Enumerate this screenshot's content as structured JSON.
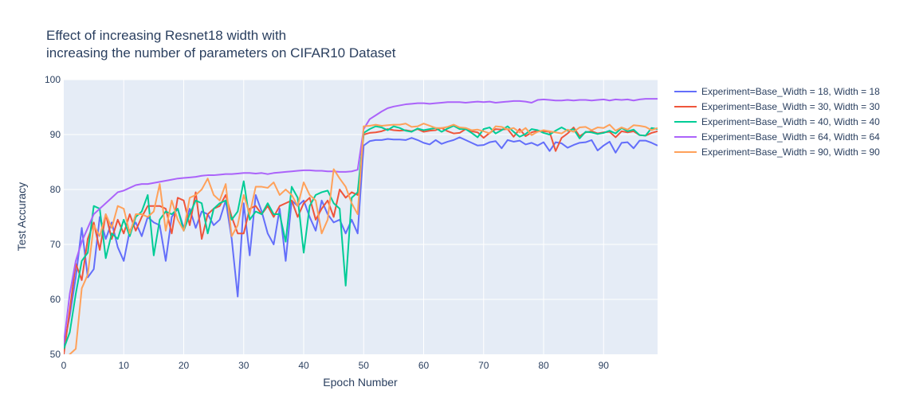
{
  "chart_data": {
    "type": "line",
    "title_lines": [
      "Effect of increasing Resnet18 width with",
      "increasing the number of parameters on CIFAR10 Dataset"
    ],
    "xlabel": "Epoch Number",
    "ylabel": "Test Accuracy",
    "xlim": [
      0,
      99
    ],
    "ylim": [
      50,
      100
    ],
    "xticks": [
      0,
      10,
      20,
      30,
      40,
      50,
      60,
      70,
      80,
      90
    ],
    "yticks": [
      50,
      60,
      70,
      80,
      90,
      100
    ],
    "grid": true,
    "legend_position": "right",
    "plot_background": "#e5ecf6",
    "series": [
      {
        "name": "Experiment=Base_Width = 18, Width = 18",
        "color": "#636efa",
        "values": [
          51.5,
          57,
          64,
          73,
          64,
          65.5,
          75,
          71,
          74,
          69.5,
          67,
          72.5,
          74,
          71.5,
          75,
          74,
          73.5,
          67,
          75,
          76.5,
          73,
          76.5,
          73,
          76,
          75.5,
          73.5,
          74.5,
          78,
          71,
          60.5,
          77.5,
          68,
          79,
          76,
          72,
          70,
          76.5,
          67,
          78,
          77,
          78,
          75,
          72.5,
          78,
          75.5,
          74,
          74.5,
          72,
          74.5,
          72,
          88,
          88.8,
          89,
          89,
          89.2,
          89.1,
          89.1,
          89,
          89.4,
          89,
          88.5,
          88.2,
          89,
          88.3,
          88.7,
          89,
          89.5,
          89,
          88.5,
          88,
          88.1,
          88.6,
          88.8,
          87.5,
          89,
          88.7,
          88.9,
          88.2,
          88.5,
          88,
          88.6,
          87,
          88.6,
          88.4,
          87.6,
          88.1,
          88.5,
          88.6,
          89,
          87.1,
          88,
          88.7,
          86.7,
          88.5,
          88.6,
          87.5,
          88.9,
          88.9,
          88.5,
          88
        ]
      },
      {
        "name": "Experiment=Base_Width = 30, Width = 30",
        "color": "#ef553b",
        "values": [
          50,
          58,
          66.5,
          63.5,
          71,
          74,
          69,
          75.5,
          71,
          74.5,
          72,
          75.5,
          72.5,
          75,
          77,
          77,
          77,
          76.5,
          72,
          78.5,
          78,
          73.5,
          79.5,
          71,
          75.5,
          76.5,
          77,
          79,
          75,
          72,
          72,
          76.5,
          77,
          75.5,
          77,
          75,
          77,
          77.5,
          78,
          75,
          77.5,
          78.5,
          74.5,
          76.5,
          78,
          75,
          80,
          78.5,
          79.5,
          79,
          90,
          90.3,
          90.4,
          90.6,
          91,
          90.8,
          90.7,
          90.8,
          90.6,
          91,
          90.5,
          90.7,
          90.8,
          91.2,
          90.6,
          90.2,
          90.3,
          91,
          90.6,
          90.4,
          89.4,
          90.3,
          91,
          90.9,
          91,
          89.6,
          91,
          89.7,
          90.4,
          90.7,
          90.6,
          90.5,
          87,
          89.4,
          90.2,
          91.3,
          89.7,
          90.4,
          90.6,
          90.2,
          90.4,
          90.5,
          89.5,
          90.6,
          90.4,
          90.6,
          89.9,
          89.8,
          90.3,
          90.6
        ]
      },
      {
        "name": "Experiment=Base_Width = 40, Width = 40",
        "color": "#00cc96",
        "values": [
          51,
          54,
          61,
          67,
          68.5,
          77,
          76.5,
          67.5,
          72,
          71,
          74.5,
          71.5,
          75,
          76,
          79,
          68,
          74.5,
          76,
          75.5,
          76.5,
          72.5,
          75.5,
          78,
          77.5,
          72,
          76.5,
          77.5,
          78,
          74.5,
          76,
          81.5,
          74.5,
          76,
          75.5,
          77.5,
          75.5,
          75.5,
          70.5,
          80.5,
          78.5,
          68.5,
          77,
          79,
          79.5,
          79.8,
          77.5,
          76.5,
          62.5,
          78.5,
          79.5,
          90.3,
          91,
          91.5,
          91.3,
          90.8,
          91.5,
          91.2,
          90.7,
          90.5,
          91.1,
          90.8,
          91,
          91.2,
          90.5,
          91.1,
          91.6,
          91,
          91,
          90.3,
          89.5,
          91,
          91.3,
          90.2,
          90.8,
          91.5,
          90.5,
          89.6,
          90.1,
          91,
          90.8,
          90.3,
          90,
          90.7,
          91.3,
          90.7,
          91,
          89.3,
          90.5,
          90.4,
          90.1,
          90.3,
          90.7,
          90.2,
          91.2,
          90.6,
          90.9,
          89.9,
          89.8,
          91.2,
          91
        ]
      },
      {
        "name": "Experiment=Base_Width = 64, Width = 64",
        "color": "#ab63fa",
        "values": [
          52,
          61,
          67,
          70.5,
          73,
          75.5,
          76.5,
          77.5,
          78.5,
          79.5,
          79.8,
          80.3,
          80.8,
          81,
          81,
          81.2,
          81.4,
          81.6,
          81.8,
          82,
          82.1,
          82.2,
          82.3,
          82.5,
          82.6,
          82.6,
          82.7,
          82.8,
          82.8,
          82.9,
          83,
          83,
          82.9,
          83,
          82.8,
          83,
          83.1,
          83.2,
          83.3,
          83.4,
          83.5,
          83.5,
          83.4,
          83.4,
          83.3,
          83.3,
          83.2,
          83.2,
          83.3,
          83.6,
          91,
          92.8,
          93.5,
          94.2,
          94.8,
          95.1,
          95.3,
          95.5,
          95.6,
          95.7,
          95.7,
          95.6,
          95.7,
          95.8,
          95.9,
          95.9,
          95.9,
          95.8,
          95.9,
          96,
          95.9,
          96,
          95.8,
          95.9,
          96,
          96.1,
          96.1,
          96,
          95.8,
          96.3,
          96.4,
          96.3,
          96.2,
          96.2,
          96.3,
          96.2,
          96.3,
          96.3,
          96.2,
          96.3,
          96.4,
          96.2,
          96.4,
          96.3,
          96.4,
          96.2,
          96.4,
          96.5,
          96.5,
          96.5
        ]
      },
      {
        "name": "Experiment=Base_Width = 90, Width = 90",
        "color": "#ffa15a",
        "values": [
          48,
          50,
          51,
          62,
          64.5,
          73.5,
          71.5,
          75.5,
          73,
          77,
          76.5,
          72,
          75.5,
          75.5,
          75,
          76,
          81,
          72.5,
          78,
          74.5,
          72.5,
          78.5,
          79,
          80,
          82,
          79,
          78,
          81,
          71.5,
          73.5,
          79,
          75.5,
          80.5,
          80.5,
          80.3,
          81.3,
          79,
          80,
          79,
          77,
          81.3,
          79,
          78,
          72,
          74.5,
          83.7,
          82,
          80.5,
          77.5,
          75.5,
          91.5,
          91.6,
          91.8,
          91.6,
          91.7,
          91.8,
          91.8,
          92,
          91.4,
          91.5,
          92,
          91.6,
          91.2,
          91.2,
          91.4,
          91.8,
          91.3,
          91.2,
          90.8,
          90.9,
          90.6,
          90.2,
          91.5,
          91.4,
          90.9,
          91.2,
          90.4,
          91.2,
          89.9,
          90.5,
          90.8,
          90.6,
          90.4,
          90.2,
          90.9,
          90.5,
          91.3,
          91.4,
          90.8,
          91.3,
          91.2,
          91.8,
          90.7,
          91.3,
          90.9,
          91.7,
          91.6,
          91.4,
          90.8,
          91.2
        ]
      }
    ]
  }
}
